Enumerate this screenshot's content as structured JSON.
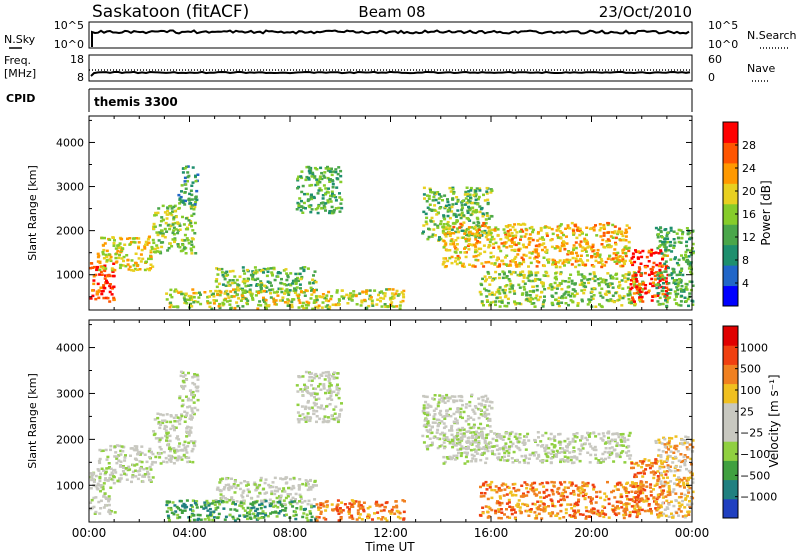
{
  "header": {
    "station": "Saskatoon (fitACF)",
    "beam": "Beam 08",
    "date": "23/Oct/2010"
  },
  "strip_nsky": {
    "left_label": "N.Sky",
    "left_ticks": [
      "10^5",
      "10^0"
    ],
    "right_label": "N.Search",
    "right_ticks": [
      "10^5",
      "10^0"
    ],
    "right_legend_style": "dotted"
  },
  "strip_freq": {
    "left_label_line1": "Freq.",
    "left_label_line2": "[MHz]",
    "left_ticks": [
      "18",
      "8"
    ],
    "right_label": "Nave",
    "right_ticks": [
      "60",
      "0"
    ],
    "right_legend_style": "dotted"
  },
  "strip_cpid": {
    "left_label": "CPID",
    "mode_text": "themis 3300"
  },
  "chart_data": [
    {
      "type": "heatmap",
      "name": "power",
      "ylabel": "Slant Range [km]",
      "ylim": [
        200,
        4600
      ],
      "yticks": [
        "1000",
        "2000",
        "3000",
        "4000"
      ],
      "xlim": [
        0,
        24
      ],
      "colorbar": {
        "label": "Power [dB]",
        "ticks": [
          "4",
          "8",
          "12",
          "16",
          "20",
          "24",
          "28"
        ],
        "range": [
          0,
          32
        ],
        "colors": [
          "#0000ff",
          "#2166c8",
          "#1e8f6e",
          "#4aa64a",
          "#86cc2a",
          "#e8d020",
          "#ff9900",
          "#ff5500",
          "#ff0000"
        ]
      },
      "regions": [
        {
          "t": [
            0.0,
            1.0
          ],
          "r": [
            400,
            1300
          ],
          "level": 30
        },
        {
          "t": [
            0.3,
            2.5
          ],
          "r": [
            1100,
            1900
          ],
          "level": 20
        },
        {
          "t": [
            2.5,
            4.2
          ],
          "r": [
            1500,
            2600
          ],
          "level": 16
        },
        {
          "t": [
            3.5,
            4.3
          ],
          "r": [
            2600,
            3500
          ],
          "level": 10
        },
        {
          "t": [
            5.0,
            9.0
          ],
          "r": [
            600,
            1200
          ],
          "level": 14
        },
        {
          "t": [
            3.0,
            12.5
          ],
          "r": [
            250,
            700
          ],
          "level": 18
        },
        {
          "t": [
            8.2,
            10.0
          ],
          "r": [
            2400,
            3500
          ],
          "level": 12
        },
        {
          "t": [
            13.2,
            16.0
          ],
          "r": [
            1800,
            3000
          ],
          "level": 14
        },
        {
          "t": [
            14.0,
            21.5
          ],
          "r": [
            1200,
            2200
          ],
          "level": 22
        },
        {
          "t": [
            15.5,
            22.0
          ],
          "r": [
            300,
            1100
          ],
          "level": 16
        },
        {
          "t": [
            21.5,
            23.0
          ],
          "r": [
            400,
            1600
          ],
          "level": 30
        },
        {
          "t": [
            22.5,
            24.0
          ],
          "r": [
            300,
            2100
          ],
          "level": 12
        }
      ]
    },
    {
      "type": "heatmap",
      "name": "velocity",
      "ylabel": "Slant Range [km]",
      "ylim": [
        200,
        4600
      ],
      "yticks": [
        "1000",
        "2000",
        "3000",
        "4000"
      ],
      "xlim": [
        0,
        24
      ],
      "xticks": [
        "00:00",
        "04:00",
        "08:00",
        "12:00",
        "16:00",
        "20:00",
        "00:00"
      ],
      "xlabel": "Time UT",
      "colorbar": {
        "label": "Velocity [m s⁻¹]",
        "ticks": [
          "1000",
          "500",
          "100",
          "25",
          "−25",
          "−100",
          "−500",
          "−1000"
        ],
        "colors": [
          "#2040c0",
          "#208080",
          "#40a040",
          "#90d040",
          "#c8c8c0",
          "#c8c8c0",
          "#f0c020",
          "#f08020",
          "#f04010",
          "#e00000"
        ]
      },
      "regions": [
        {
          "t": [
            0.0,
            1.0
          ],
          "r": [
            400,
            1300
          ],
          "level": 4
        },
        {
          "t": [
            0.3,
            2.5
          ],
          "r": [
            1100,
            1900
          ],
          "level": 4
        },
        {
          "t": [
            2.5,
            4.2
          ],
          "r": [
            1500,
            2600
          ],
          "level": 4
        },
        {
          "t": [
            3.5,
            4.3
          ],
          "r": [
            2600,
            3500
          ],
          "level": 4
        },
        {
          "t": [
            5.0,
            9.0
          ],
          "r": [
            600,
            1200
          ],
          "level": 4
        },
        {
          "t": [
            3.0,
            9.0
          ],
          "r": [
            250,
            700
          ],
          "level": 2
        },
        {
          "t": [
            9.0,
            12.5
          ],
          "r": [
            250,
            700
          ],
          "level": 7
        },
        {
          "t": [
            8.2,
            10.0
          ],
          "r": [
            2400,
            3500
          ],
          "level": 4
        },
        {
          "t": [
            13.2,
            16.0
          ],
          "r": [
            1800,
            3000
          ],
          "level": 4
        },
        {
          "t": [
            14.0,
            21.5
          ],
          "r": [
            1500,
            2200
          ],
          "level": 4
        },
        {
          "t": [
            15.5,
            22.0
          ],
          "r": [
            300,
            1100
          ],
          "level": 7
        },
        {
          "t": [
            21.5,
            23.0
          ],
          "r": [
            400,
            1600
          ],
          "level": 7
        },
        {
          "t": [
            22.5,
            24.0
          ],
          "r": [
            300,
            2100
          ],
          "level": 6
        }
      ]
    }
  ]
}
